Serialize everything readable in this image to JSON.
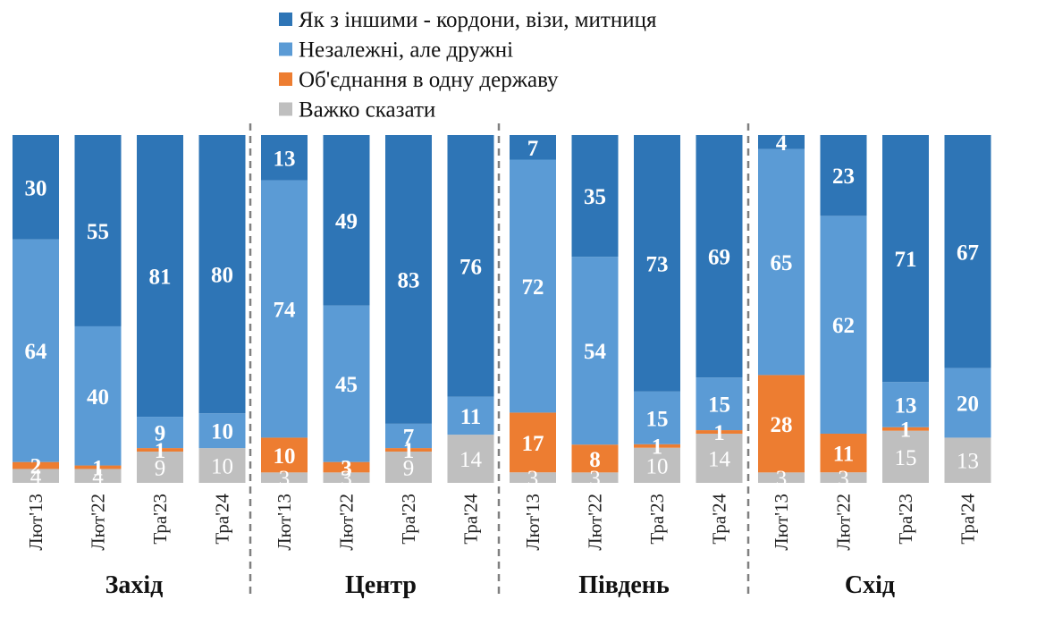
{
  "chart_data": {
    "type": "bar",
    "stacked": true,
    "normalized": true,
    "legend_position": "top",
    "series": [
      {
        "name": "Важко сказати",
        "color": "#BFBFBF"
      },
      {
        "name": "Об'єднання в одну державу",
        "color": "#ED7D31"
      },
      {
        "name": "Незалежні, але дружні",
        "color": "#5B9BD5"
      },
      {
        "name": "Як з іншими - кордони, візи, митниця",
        "color": "#2E75B6"
      }
    ],
    "legend_order": [
      3,
      2,
      1,
      0
    ],
    "groups": [
      {
        "region": "Захід",
        "bars": [
          {
            "category": "Лют'13",
            "values": [
              4,
              2,
              64,
              30
            ],
            "labels": [
              "4",
              "2",
              "64",
              "30"
            ]
          },
          {
            "category": "Лют'22",
            "values": [
              4,
              1,
              40,
              55
            ],
            "labels": [
              "4",
              "1",
              "40",
              "55"
            ]
          },
          {
            "category": "Тра'23",
            "values": [
              9,
              1,
              9,
              81
            ],
            "labels": [
              "9",
              "1",
              "9",
              "81"
            ]
          },
          {
            "category": "Тра'24",
            "values": [
              10,
              0,
              10,
              80
            ],
            "labels": [
              "10",
              "",
              "10",
              "80"
            ]
          }
        ]
      },
      {
        "region": "Центр",
        "bars": [
          {
            "category": "Лют'13",
            "values": [
              3,
              10,
              74,
              13
            ],
            "labels": [
              "3",
              "10",
              "74",
              "13"
            ]
          },
          {
            "category": "Лют'22",
            "values": [
              3,
              3,
              45,
              49
            ],
            "labels": [
              "3",
              "3",
              "45",
              "49"
            ]
          },
          {
            "category": "Тра'23",
            "values": [
              9,
              1,
              7,
              83
            ],
            "labels": [
              "9",
              "1",
              "7",
              "83"
            ]
          },
          {
            "category": "Тра'24",
            "values": [
              14,
              0,
              11,
              76
            ],
            "labels": [
              "14",
              "",
              "11",
              "76"
            ]
          }
        ]
      },
      {
        "region": "Південь",
        "bars": [
          {
            "category": "Лют'13",
            "values": [
              3,
              17,
              72,
              7
            ],
            "labels": [
              "3",
              "17",
              "72",
              "7"
            ]
          },
          {
            "category": "Лют'22",
            "values": [
              3,
              8,
              54,
              35
            ],
            "labels": [
              "3",
              "8",
              "54",
              "35"
            ]
          },
          {
            "category": "Тра'23",
            "values": [
              10,
              1,
              15,
              73
            ],
            "labels": [
              "10",
              "1",
              "15",
              "73"
            ]
          },
          {
            "category": "Тра'24",
            "values": [
              14,
              1,
              15,
              69
            ],
            "labels": [
              "14",
              "1",
              "15",
              "69"
            ]
          }
        ]
      },
      {
        "region": "Схід",
        "bars": [
          {
            "category": "Лют'13",
            "values": [
              3,
              28,
              65,
              4
            ],
            "labels": [
              "3",
              "28",
              "65",
              "4"
            ]
          },
          {
            "category": "Лют'22",
            "values": [
              3,
              11,
              62,
              23
            ],
            "labels": [
              "3",
              "11",
              "62",
              "23"
            ]
          },
          {
            "category": "Тра'23",
            "values": [
              15,
              1,
              13,
              71
            ],
            "labels": [
              "15",
              "1",
              "13",
              "71"
            ]
          },
          {
            "category": "Тра'24",
            "values": [
              13,
              0,
              20,
              67
            ],
            "labels": [
              "13",
              "",
              "20",
              "67"
            ]
          }
        ]
      }
    ]
  }
}
